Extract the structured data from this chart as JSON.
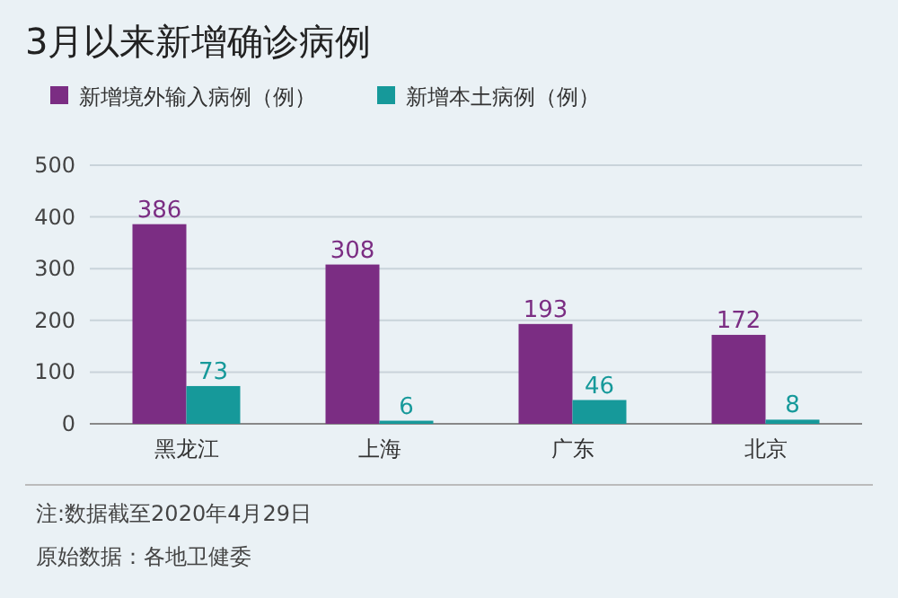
{
  "chart_data": {
    "type": "bar",
    "title": "3月以来新增确诊病例",
    "categories": [
      "黑龙江",
      "上海",
      "广东",
      "北京"
    ],
    "series": [
      {
        "name": "新增境外输入病例（例）",
        "color": "#7b2d83",
        "values": [
          386,
          308,
          193,
          172
        ]
      },
      {
        "name": "新增本土病例（例）",
        "color": "#16999a",
        "values": [
          73,
          6,
          46,
          8
        ]
      }
    ],
    "ylim": [
      0,
      500
    ],
    "yticks": [
      0,
      100,
      200,
      300,
      400,
      500
    ],
    "grid": "y",
    "legend": "top left",
    "data_labels": true,
    "annotations": [
      "注:数据截至2020年4月29日",
      "原始数据：各地卫健委"
    ]
  }
}
